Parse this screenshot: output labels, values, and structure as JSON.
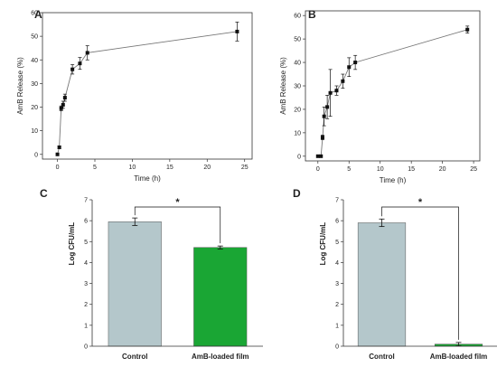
{
  "colors": {
    "line": "#777777",
    "marker": "#111111",
    "axis": "#333333",
    "control_bar": "#b4c7cb",
    "amb_bar": "#1aa634"
  },
  "chart_data": [
    {
      "panel": "A",
      "type": "line",
      "xlabel": "Time (h)",
      "ylabel": "AmB Release (%)",
      "xlim": [
        -2,
        26
      ],
      "ylim": [
        -2,
        60
      ],
      "xticks": [
        0,
        5,
        10,
        15,
        20,
        25
      ],
      "yticks": [
        0,
        10,
        20,
        30,
        40,
        50,
        60
      ],
      "series": [
        {
          "x": [
            0,
            0.25,
            0.5,
            0.75,
            1,
            2,
            3,
            4,
            24
          ],
          "y": [
            0,
            3,
            19.5,
            21,
            24,
            36,
            38.5,
            43,
            52
          ],
          "err": [
            0,
            0.5,
            1,
            1.5,
            1.5,
            2,
            2.5,
            3,
            4
          ]
        }
      ]
    },
    {
      "panel": "B",
      "type": "line",
      "xlabel": "Time (h)",
      "ylabel": "AmB Release (%)",
      "xlim": [
        -2,
        26
      ],
      "ylim": [
        -2,
        62
      ],
      "xticks": [
        0,
        5,
        10,
        15,
        20,
        25
      ],
      "yticks": [
        0,
        10,
        20,
        30,
        40,
        50,
        60
      ],
      "series": [
        {
          "x": [
            0,
            0.5,
            0.75,
            1,
            1.5,
            2,
            3,
            4,
            5,
            6,
            24
          ],
          "y": [
            0,
            0,
            8,
            17,
            21,
            27,
            28,
            32,
            38,
            40,
            54
          ],
          "err": [
            0,
            0,
            1,
            4,
            5,
            10,
            2,
            3,
            4,
            3,
            1.5
          ]
        }
      ]
    },
    {
      "panel": "C",
      "type": "bar",
      "ylabel": "Log CFU/mL",
      "categories": [
        "Control",
        "AmB-loaded film"
      ],
      "values": [
        5.95,
        4.72
      ],
      "err": [
        0.18,
        0.07
      ],
      "ylim": [
        0,
        7
      ],
      "yticks": [
        0,
        1,
        2,
        3,
        4,
        5,
        6,
        7
      ],
      "significance": "*"
    },
    {
      "panel": "D",
      "type": "bar",
      "ylabel": "Log CFU/mL",
      "categories": [
        "Control",
        "AmB-loaded film"
      ],
      "values": [
        5.9,
        0.1
      ],
      "err": [
        0.18,
        0.08
      ],
      "ylim": [
        0,
        7
      ],
      "yticks": [
        0,
        1,
        2,
        3,
        4,
        5,
        6,
        7
      ],
      "significance": "*"
    }
  ]
}
